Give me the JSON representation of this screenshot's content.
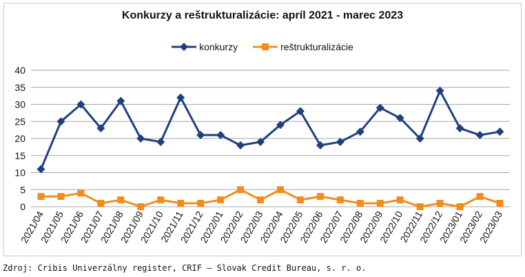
{
  "chart_data": {
    "type": "line",
    "title": "Konkurzy a reštrukturalizácie: apríl 2021 - marec 2023",
    "xlabel": "",
    "ylabel": "",
    "ylim": [
      0,
      40
    ],
    "yticks": [
      0,
      5,
      10,
      15,
      20,
      25,
      30,
      35,
      40
    ],
    "grid": true,
    "legend_position": "top-center",
    "categories": [
      "2021/04",
      "2021/05",
      "2021/06",
      "2021/07",
      "2021/08",
      "2021/09",
      "2021/10",
      "2021/11",
      "2021/12",
      "2022/01",
      "2022/02",
      "2022/03",
      "2022/04",
      "2022/05",
      "2022/06",
      "2022/07",
      "2022/08",
      "2022/09",
      "2022/10",
      "2022/11",
      "2022/12",
      "2023/01",
      "2023/02",
      "2023/03"
    ],
    "series": [
      {
        "name": "konkurzy",
        "color": "#1f3f7f",
        "marker": "diamond",
        "values": [
          11,
          25,
          30,
          23,
          31,
          20,
          19,
          32,
          21,
          21,
          18,
          19,
          24,
          28,
          18,
          19,
          22,
          29,
          26,
          20,
          34,
          23,
          21,
          22
        ]
      },
      {
        "name": "reštrukturalizácie",
        "color": "#f28c1c",
        "marker": "square",
        "values": [
          3,
          3,
          4,
          1,
          2,
          0,
          2,
          1,
          1,
          2,
          5,
          2,
          5,
          2,
          3,
          2,
          1,
          1,
          2,
          0,
          1,
          0,
          3,
          1
        ]
      }
    ]
  },
  "source": "Zdroj: Cribis Univerzálny register, CRIF – Slovak Credit Bureau, s. r. o."
}
